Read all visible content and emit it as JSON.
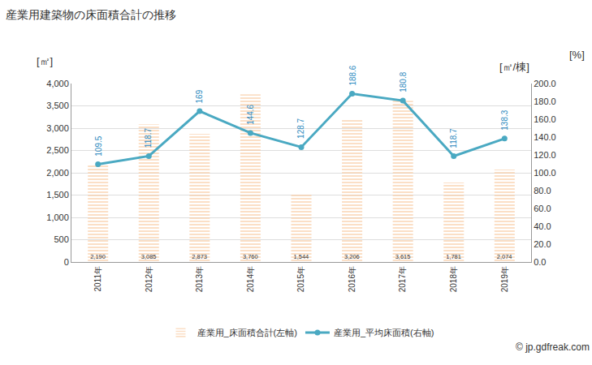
{
  "chart_data": {
    "type": "bar",
    "title": "産業用建築物の床面積合計の推移",
    "ylabel": "[㎡]",
    "y2label": "[㎡/棟]",
    "annotations": [
      "[%]",
      "© jp.gdfreak.com"
    ],
    "categories": [
      "2011年",
      "2012年",
      "2013年",
      "2014年",
      "2015年",
      "2016年",
      "2017年",
      "2018年",
      "2019年"
    ],
    "series": [
      {
        "name": "産業用_床面積合計(左軸)",
        "type": "bar",
        "color": "#f5a25d",
        "values": [
          2190,
          3085,
          2873,
          3760,
          1544,
          3206,
          3615,
          1781,
          2074
        ],
        "value_labels": [
          "2,190",
          "3,085",
          "2,873",
          "3,760",
          "1,544",
          "3,206",
          "3,615",
          "1,781",
          "2,074"
        ]
      },
      {
        "name": "産業用_平均床面積(右軸)",
        "type": "line",
        "color": "#4aa9c2",
        "marker": "circle",
        "axis": "y2",
        "values": [
          109.5,
          118.7,
          169,
          144.6,
          128.7,
          188.6,
          180.8,
          118.7,
          138.3
        ]
      }
    ],
    "ylim": [
      0,
      4000
    ],
    "yticks": [
      0,
      500,
      {
        "value": 1000,
        "label": "1,000"
      },
      {
        "value": 1500,
        "label": "1,500"
      },
      {
        "value": 2000,
        "label": "2,000"
      },
      {
        "value": 2500,
        "label": "2,500"
      },
      {
        "value": 3000,
        "label": "3,000"
      },
      {
        "value": 3500,
        "label": "3,500"
      },
      {
        "value": 4000,
        "label": "4,000"
      }
    ],
    "y2lim": [
      0,
      200
    ],
    "y2ticks": [
      {
        "value": 0,
        "label": "0.0"
      },
      {
        "value": 20,
        "label": "20.0"
      },
      {
        "value": 40,
        "label": "40.0"
      },
      {
        "value": 60,
        "label": "60.0"
      },
      {
        "value": 80,
        "label": "80.0"
      },
      {
        "value": 100,
        "label": "100.0"
      },
      {
        "value": 120,
        "label": "120.0"
      },
      {
        "value": 140,
        "label": "140.0"
      },
      {
        "value": 160,
        "label": "160.0"
      },
      {
        "value": 180,
        "label": "180.0"
      },
      {
        "value": 200,
        "label": "200.0"
      }
    ],
    "grid": true,
    "legend": "bottom",
    "data_labels": true
  }
}
